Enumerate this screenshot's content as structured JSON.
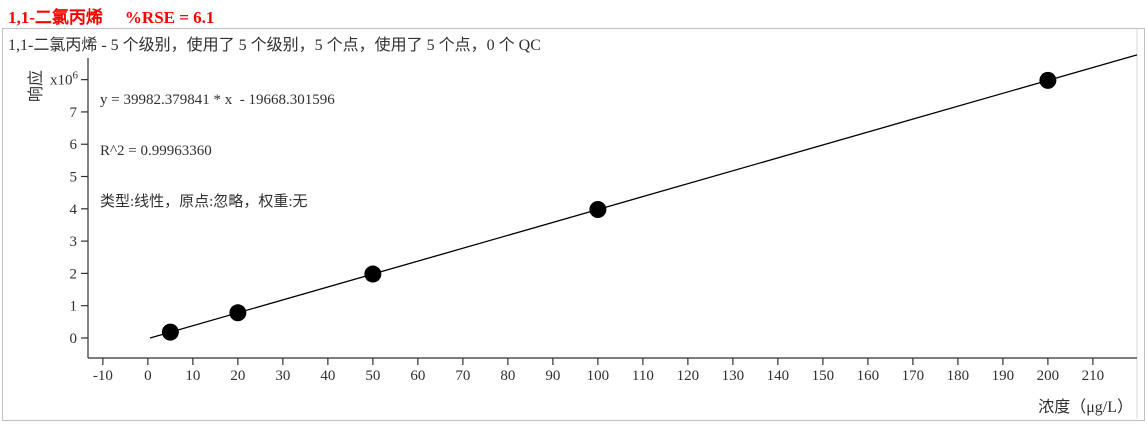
{
  "header": {
    "compound": "1,1-二氯丙烯",
    "rse": "%RSE = 6.1",
    "summary": "1,1-二氯丙烯 - 5 个级别，使用了 5 个级别，5 个点，使用了 5 个点，0 个 QC"
  },
  "equation": {
    "formula": "y = 39982.379841 * x  - 19668.301596",
    "r_squared": "R^2 = 0.99963360",
    "fit_description": "类型:线性，原点:忽略，权重:无"
  },
  "chart_data": {
    "type": "scatter",
    "title": "1,1-二氯丙烯  %RSE = 6.1",
    "xlabel": "浓度（μg/L）",
    "ylabel": "响应",
    "y_multiplier": {
      "base": "x10",
      "exponent": "6",
      "at_value": 8
    },
    "x_ticks": [
      -10,
      0,
      10,
      20,
      30,
      40,
      50,
      60,
      70,
      80,
      90,
      100,
      110,
      120,
      130,
      140,
      150,
      160,
      170,
      180,
      190,
      200,
      210
    ],
    "y_ticks": [
      0,
      1,
      2,
      3,
      4,
      5,
      6,
      7
    ],
    "xlim": [
      -13.3,
      219.8
    ],
    "ylim_millions": [
      -0.62,
      8.67
    ],
    "grid": false,
    "legend": false,
    "points": {
      "x": [
        5,
        20,
        50,
        100,
        200
      ],
      "y_response": [
        180243,
        779979,
        1979451,
        3978570,
        7976808
      ]
    },
    "fit": {
      "kind": "linear",
      "slope": 39982.379841,
      "intercept": -19668.301596,
      "r_squared": 0.9996336,
      "levels": 5,
      "levels_used": 5,
      "points": 5,
      "points_used": 5,
      "qc_count": 0
    },
    "colors": {
      "title": "#ff0000",
      "text": "#303030",
      "axis": "#303030",
      "fit_line": "#000000",
      "point": "#000000",
      "region_border": "#bfbfbf",
      "inner_divider": "#d8d8d8",
      "background": "#ffffff"
    }
  }
}
